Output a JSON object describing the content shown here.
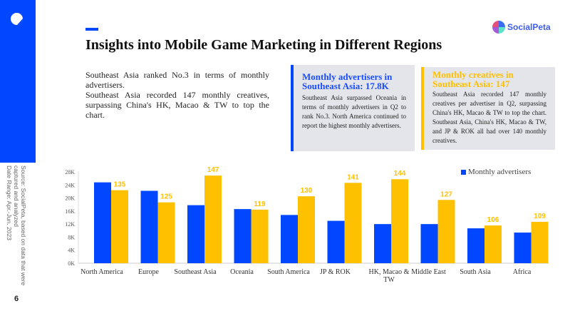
{
  "page_number": "6",
  "source_note": "Source: SocialPeta, based on data that were captured and analyzed",
  "date_range": "Date Range: Apr.-Jun. 2023",
  "title": "Insights into Mobile Game Marketing in Different Regions",
  "brand": "SocialPeta",
  "intro": [
    "Southeast Asia ranked No.3 in terms of monthly advertisers.",
    "Southeast Asia recorded 147 monthly creatives, surpassing China's HK, Macao & TW to top the chart."
  ],
  "card1": {
    "title": "Monthly advertisers in Southeast Asia: 17.8K",
    "body": "Southeast Asia surpassed Oceania in terms of monthly advertisers in Q2 to rank No.3. North America continued to report the highest monthly advertisers."
  },
  "card2": {
    "title": "Monthly creatives in Southeast Asia: 147",
    "body": "Southeast Asia recorded 147 monthly creatives per advertiser in Q2, surpassing China's HK, Macao & TW to top the chart. Southeast Asia, China's HK, Macao & TW, and JP & ROK all had over 140 monthly creatives."
  },
  "colors": {
    "advertisers": "#0047ff",
    "creatives": "#ffc000"
  },
  "chart_data": {
    "type": "bar",
    "categories": [
      "North America",
      "Europe",
      "Southeast Asia",
      "Oceania",
      "South America",
      "JP & ROK",
      "HK, Macao & TW",
      "Middle East",
      "South Asia",
      "Africa"
    ],
    "series": [
      {
        "name": "Monthly advertisers",
        "values": [
          24.8,
          22.2,
          17.8,
          16.6,
          14.8,
          13.0,
          12.0,
          12.0,
          10.7,
          9.4
        ],
        "unit": "K",
        "axis": "left"
      },
      {
        "name": "Monthly creatives",
        "values": [
          135,
          125,
          147,
          119,
          130,
          141,
          144,
          127,
          106,
          109
        ],
        "axis": "right-hidden"
      }
    ],
    "yticks": [
      "0K",
      "4K",
      "8K",
      "12K",
      "16K",
      "20K",
      "24K",
      "28K"
    ],
    "ylim": [
      0,
      28
    ],
    "y2lim": [
      75,
      150
    ],
    "legend": "top-right"
  }
}
